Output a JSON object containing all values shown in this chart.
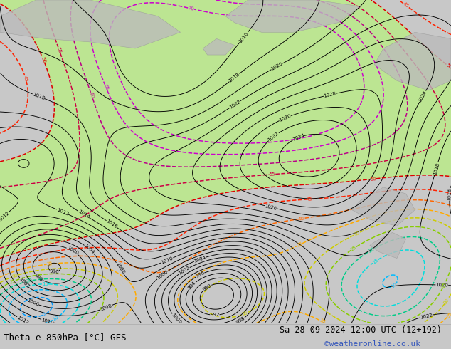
{
  "title_left": "Theta-e 850hPa [°C] GFS",
  "title_right": "Sa 28-09-2024 12:00 UTC (12+192)",
  "copyright": "©weatheronline.co.uk",
  "bg_color": "#c8c8c8",
  "map_bg": "#d4d4d4",
  "fig_width": 6.34,
  "fig_height": 4.9,
  "dpi": 100,
  "title_fontsize": 9,
  "copyright_fontsize": 8,
  "copyright_color": "#3355bb",
  "theta_levels": [
    -10,
    -5,
    0,
    5,
    10,
    15,
    20,
    25,
    30,
    35,
    40,
    45,
    50,
    55,
    60,
    65,
    70
  ],
  "theta_colors": [
    "#2200aa",
    "#0000dd",
    "#0055ff",
    "#0099ff",
    "#00bbff",
    "#00dddd",
    "#00cc88",
    "#88cc00",
    "#cccc00",
    "#ffaa00",
    "#ff6600",
    "#ff2200",
    "#dd0000",
    "#cc0044",
    "#bb0088",
    "#cc00cc"
  ],
  "green_fill_threshold": 50,
  "green_fill_color": "#b8f080",
  "pressure_base": 1018,
  "land_color": "#bbbbbb",
  "sea_color": "#d0d0d0"
}
